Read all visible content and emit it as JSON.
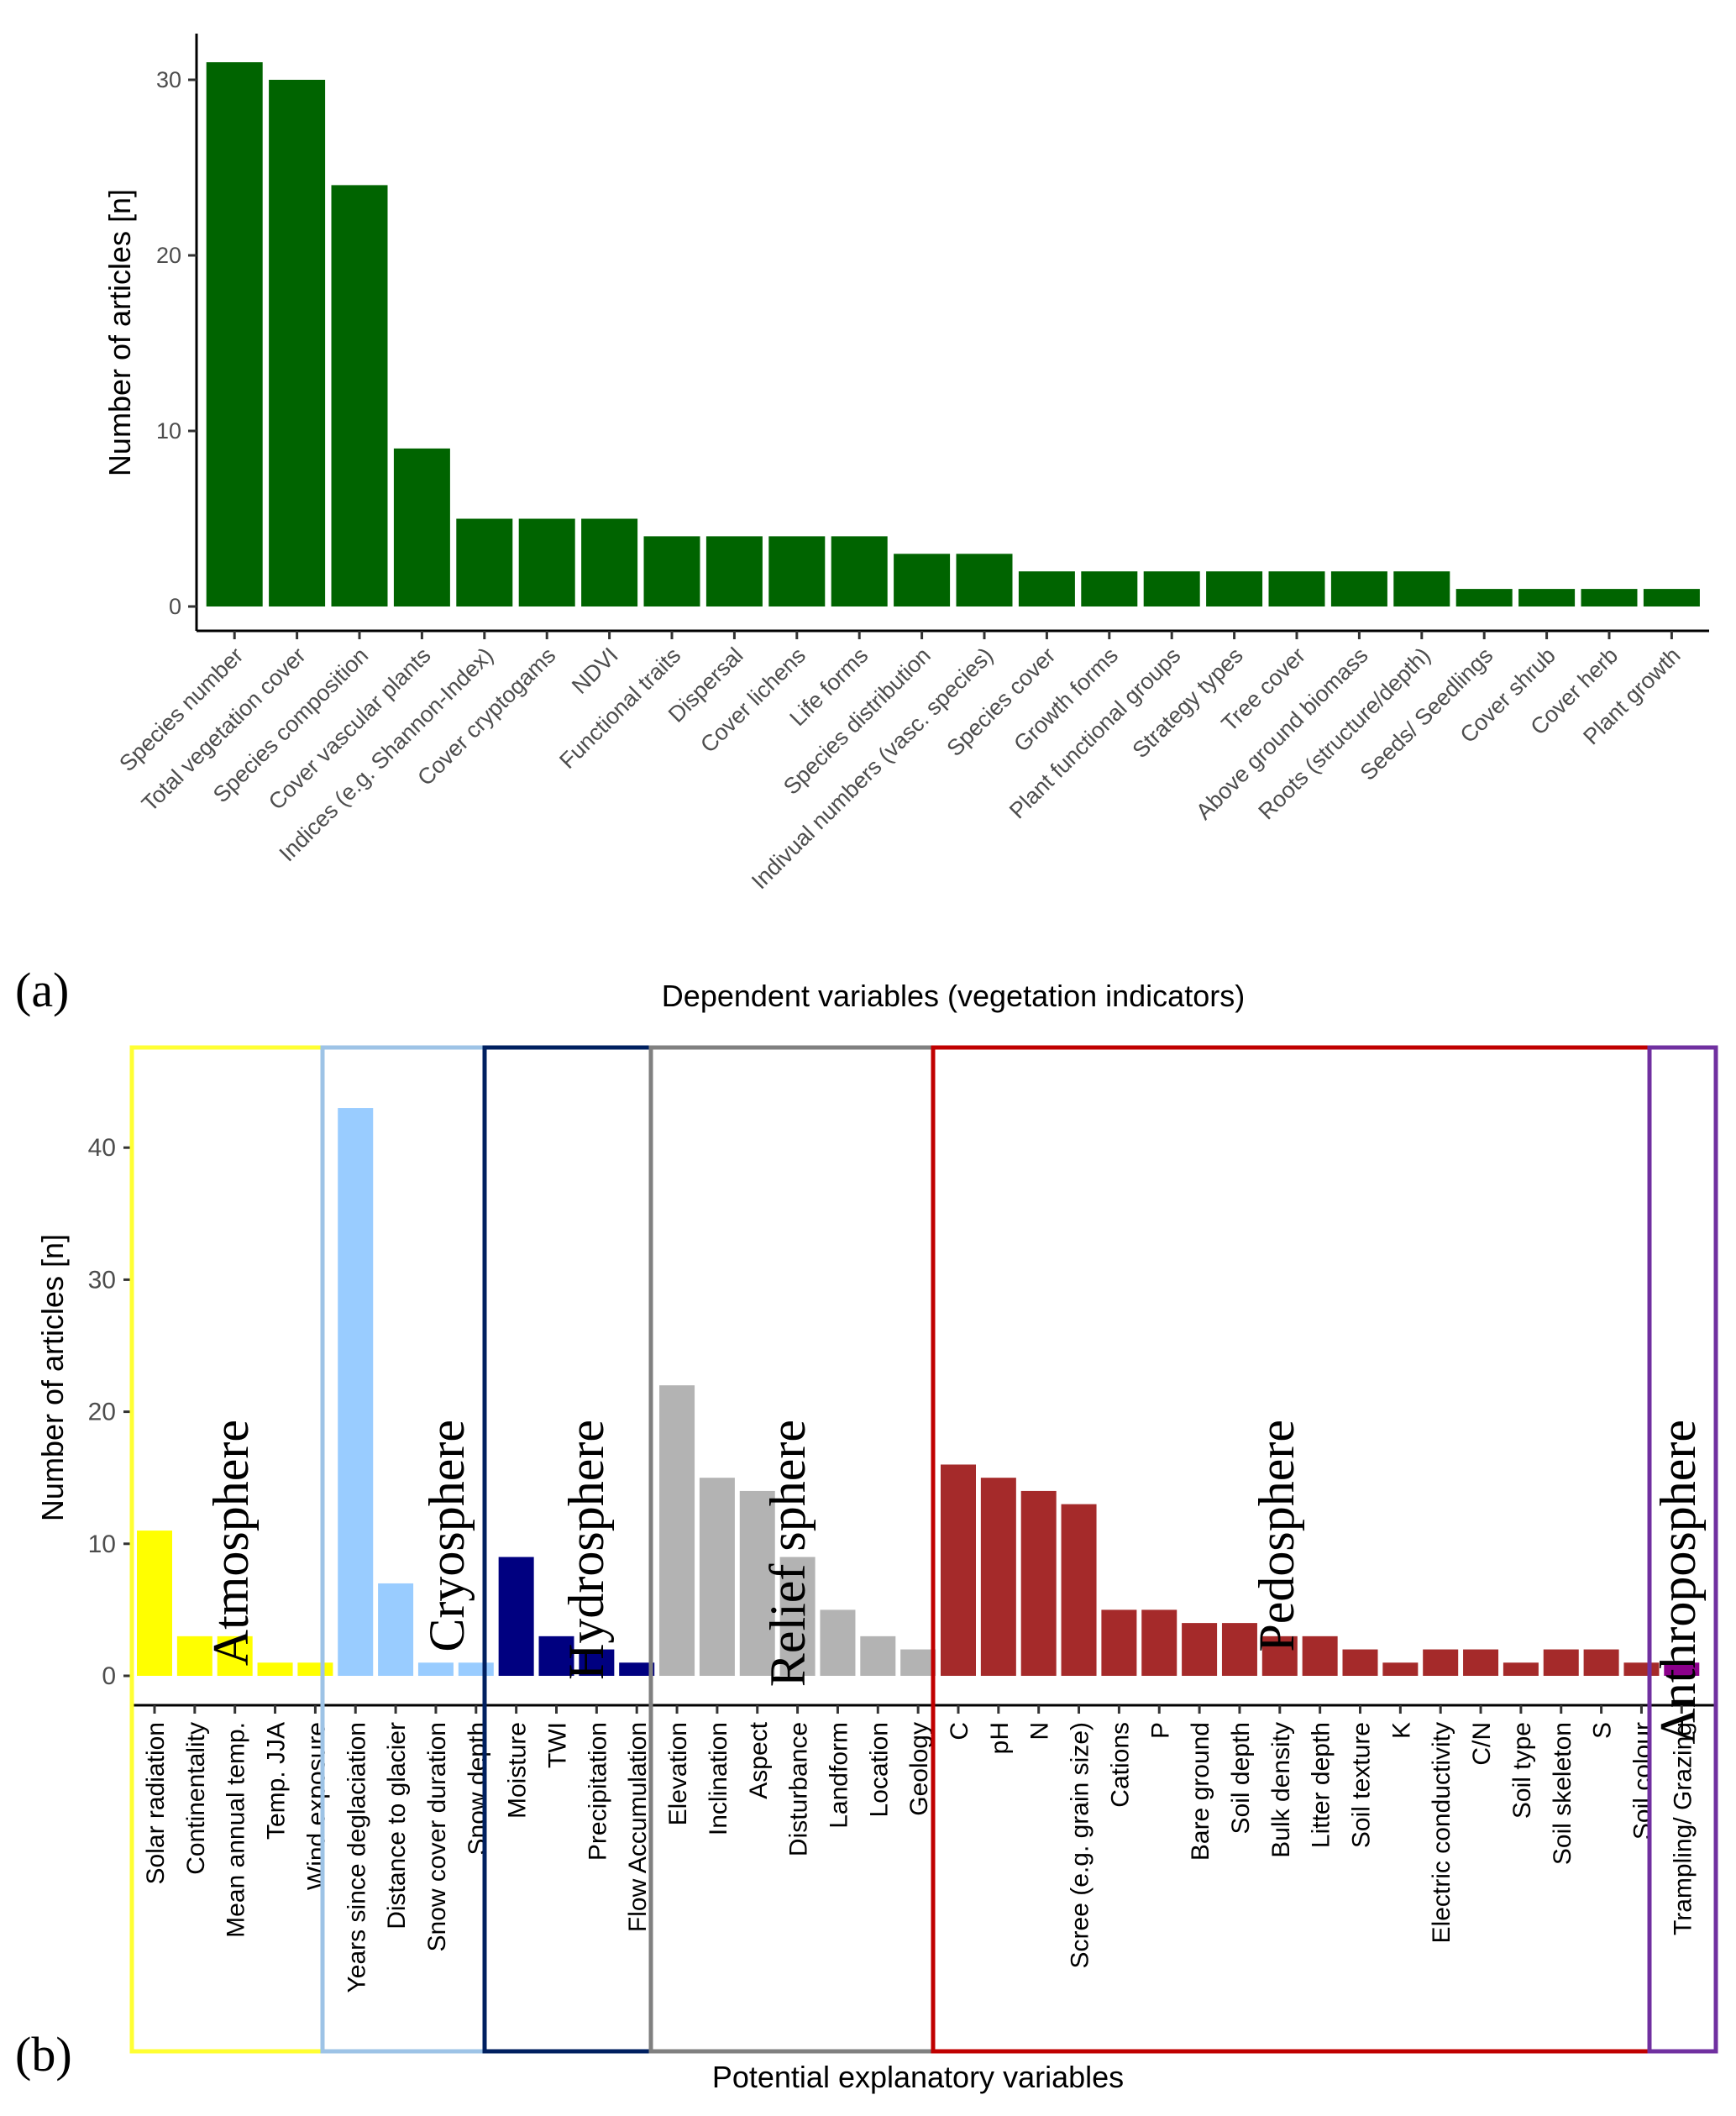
{
  "chart_data": [
    {
      "panel_label": "(a)",
      "type": "bar",
      "xlabel": "Dependent variables (vegetation indicators)",
      "ylabel": "Number of articles [n]",
      "ylim": [
        0,
        32
      ],
      "yticks": [
        0,
        10,
        20,
        30
      ],
      "grid": false,
      "color": "#006400",
      "categories": [
        "Species number",
        "Total vegetation cover",
        "Species composition",
        "Cover vascular plants",
        "Indices (e.g. Shannon-Index)",
        "Cover cryptogams",
        "NDVI",
        "Functional traits",
        "Dispersal",
        "Cover lichens",
        "Life forms",
        "Species distribution",
        "Indivual numbers (vasc. species)",
        "Species cover",
        "Growth forms",
        "Plant functional groups",
        "Strategy types",
        "Tree cover",
        "Above ground biomass",
        "Roots (structure/depth)",
        "Seeds/ Seedlings",
        "Cover shrub",
        "Cover herb",
        "Plant growth"
      ],
      "values": [
        31,
        30,
        24,
        9,
        5,
        5,
        5,
        4,
        4,
        4,
        4,
        3,
        3,
        2,
        2,
        2,
        2,
        2,
        2,
        2,
        1,
        1,
        1,
        1
      ]
    },
    {
      "panel_label": "(b)",
      "type": "bar",
      "xlabel": "Potential explanatory variables",
      "ylabel": "Number of articles [n]",
      "ylim": [
        0,
        46
      ],
      "yticks": [
        0,
        10,
        20,
        30,
        40
      ],
      "grid": false,
      "groups": [
        {
          "name": "Atmosphere",
          "bar_color": "#ffff00",
          "box_color": "#ffff33",
          "categories": [
            "Solar radiation",
            "Continentality",
            "Mean annual temp.",
            "Temp. JJA",
            "Wind exposure"
          ],
          "values": [
            11,
            3,
            3,
            1,
            1
          ]
        },
        {
          "name": "Cryosphere",
          "bar_color": "#99ccff",
          "box_color": "#9dc3e6",
          "categories": [
            "Years since deglaciation",
            "Distance to glacier",
            "Snow cover duration",
            "Snow depth"
          ],
          "values": [
            43,
            7,
            1,
            1
          ]
        },
        {
          "name": "Hydrosphere",
          "bar_color": "#000080",
          "box_color": "#002060",
          "categories": [
            "Moisture",
            "TWI",
            "Precipitation",
            "Flow Accumulation"
          ],
          "values": [
            9,
            3,
            2,
            1
          ]
        },
        {
          "name": "Relief sphere",
          "bar_color": "#b3b3b3",
          "box_color": "#808080",
          "categories": [
            "Elevation",
            "Inclination",
            "Aspect",
            "Disturbance",
            "Landform",
            "Location",
            "Geology"
          ],
          "values": [
            22,
            15,
            14,
            9,
            5,
            3,
            2
          ]
        },
        {
          "name": "Pedosphere",
          "bar_color": "#a52a2a",
          "box_color": "#c00000",
          "categories": [
            "C",
            "pH",
            "N",
            "Scree (e.g. grain size)",
            "Cations",
            "P",
            "Bare ground",
            "Soil depth",
            "Bulk density",
            "Litter depth",
            "Soil texture",
            "K",
            "Electric conductivity",
            "C/N",
            "Soil type",
            "Soil skeleton",
            "S",
            "Soil colour"
          ],
          "values": [
            16,
            15,
            14,
            13,
            5,
            5,
            4,
            4,
            3,
            3,
            2,
            1,
            2,
            2,
            1,
            2,
            2,
            1
          ]
        },
        {
          "name": "Anthroposphere",
          "bar_color": "#8b008b",
          "box_color": "#7030a0",
          "categories": [
            "Trampling/ Grazing"
          ],
          "values": [
            1
          ]
        }
      ]
    }
  ]
}
